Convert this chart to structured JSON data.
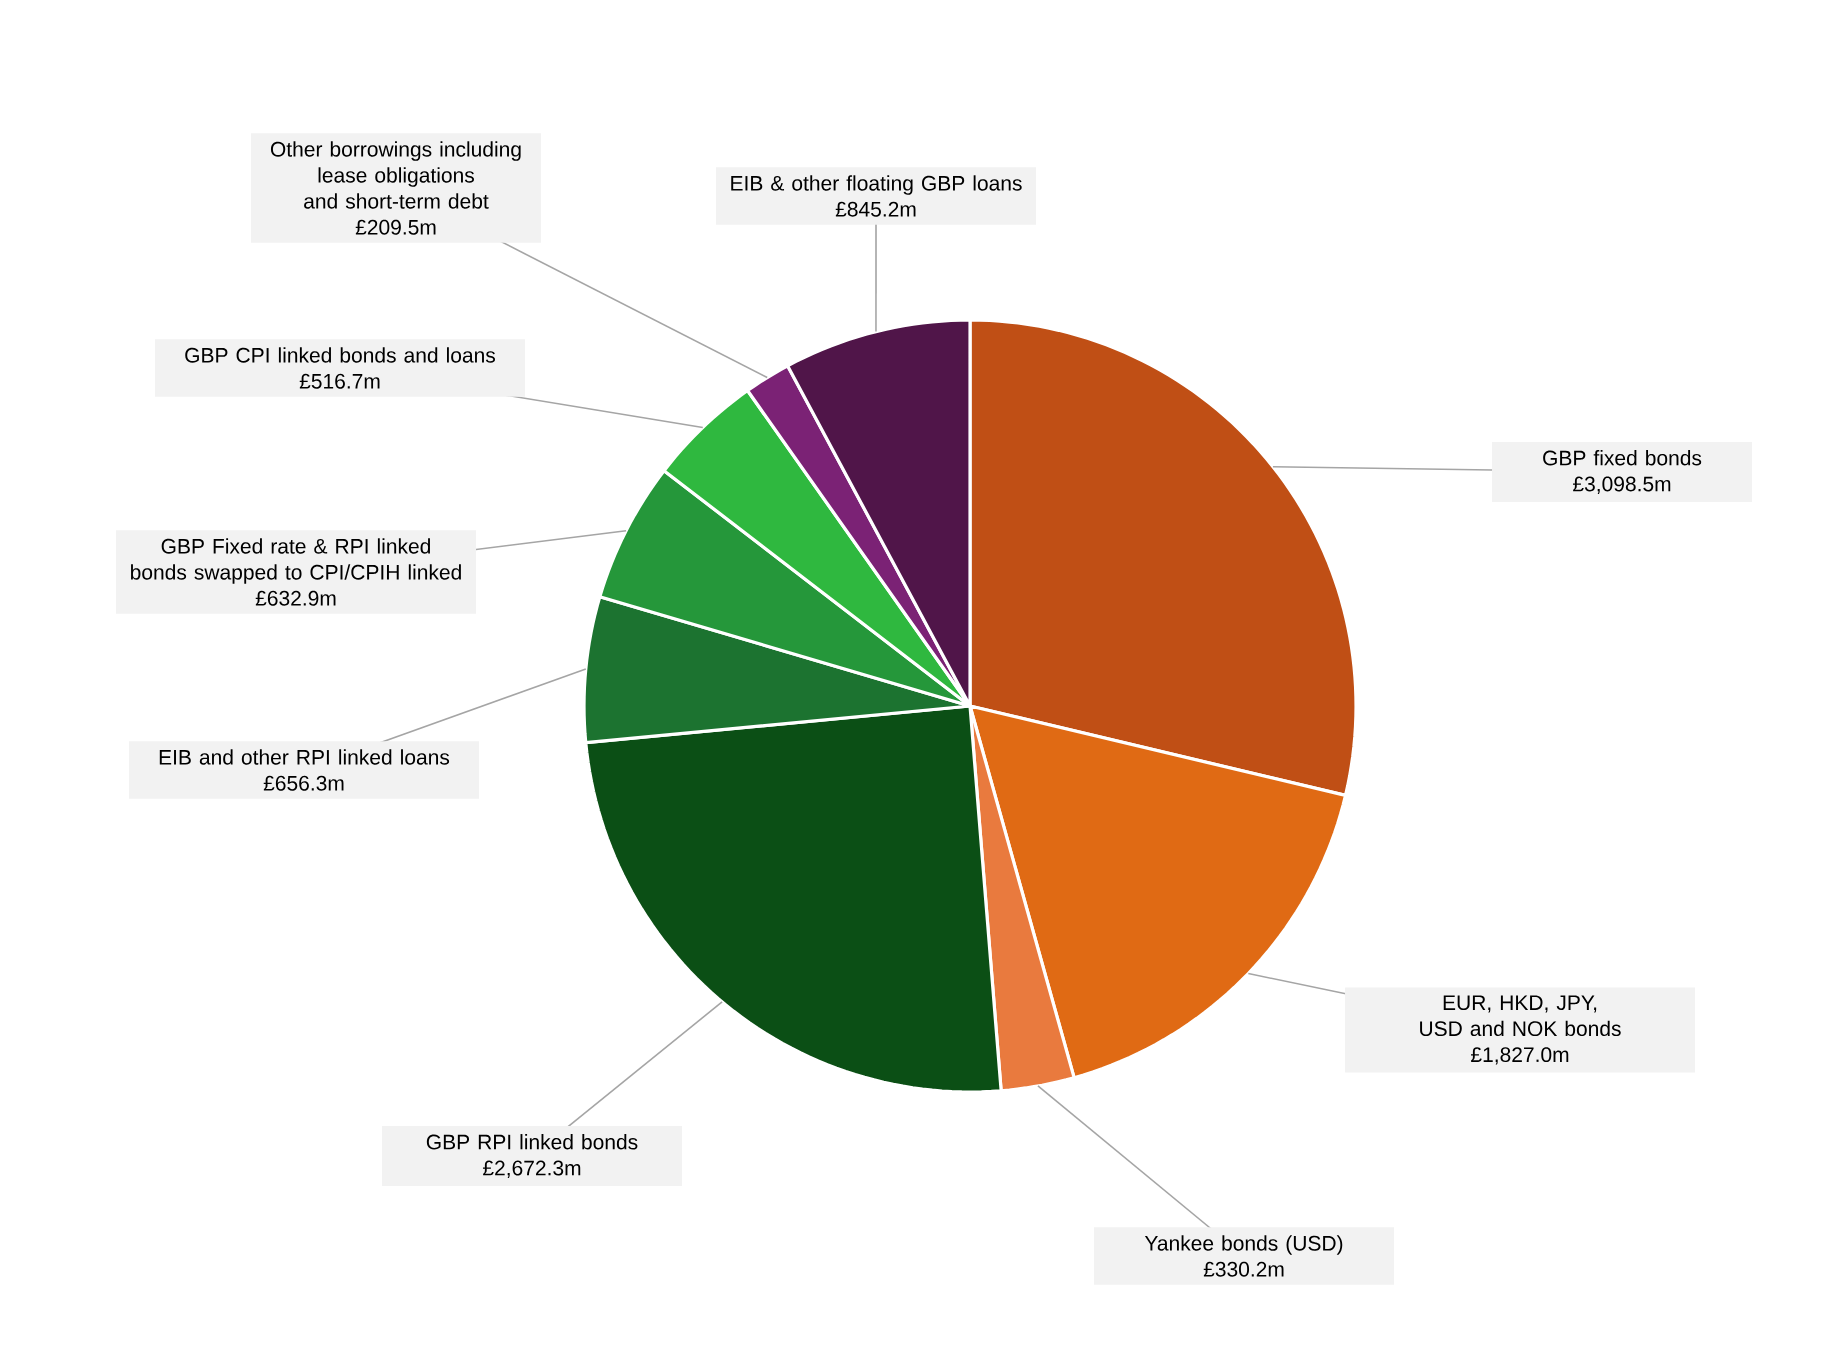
{
  "chart_data": {
    "type": "pie",
    "categories": [
      "GBP fixed bonds",
      "EUR, HKD, JPY, USD and NOK bonds",
      "Yankee bonds (USD)",
      "GBP RPI linked bonds",
      "EIB and other RPI linked loans",
      "GBP Fixed rate & RPI linked bonds swapped to CPI/CPIH linked",
      "GBP CPI linked bonds and loans",
      "Other borrowings including lease obligations and short-term debt",
      "EIB & other floating GBP loans"
    ],
    "values": [
      3098.5,
      1827.0,
      330.2,
      2672.3,
      656.3,
      632.9,
      516.7,
      209.5,
      845.2
    ],
    "value_labels": [
      "£3,098.5m",
      "£1,827.0m",
      "£330.2m",
      "£2,672.3m",
      "£656.3m",
      "£632.9m",
      "£516.7m",
      "£209.5m",
      "£845.2m"
    ],
    "colors": [
      "#c04f15",
      "#e06a14",
      "#e97a3e",
      "#0b4f15",
      "#1c7330",
      "#25973a",
      "#2fb83f",
      "#7b2275",
      "#501549"
    ]
  }
}
